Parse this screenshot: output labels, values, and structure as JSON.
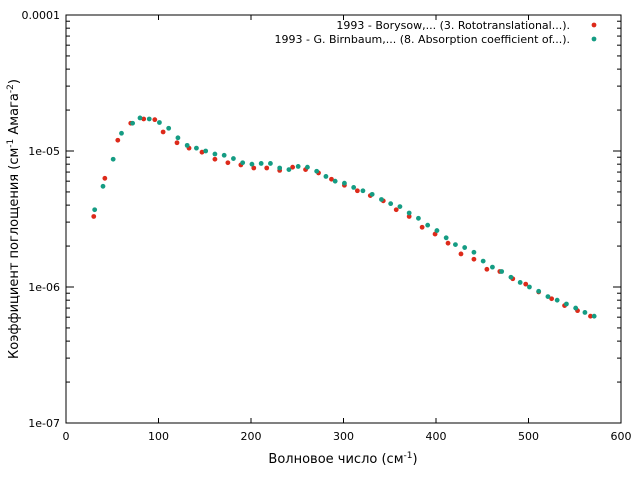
{
  "chart_data": {
    "type": "scatter",
    "xlabel": "Волновое число (см",
    "xlabel_sup": "-1",
    "xlabel_close": ")",
    "ylabel": "Коэффициент поглощения (см",
    "ylabel_sup1": "-1",
    "ylabel_mid": " Амага",
    "ylabel_sup2": "-2",
    "ylabel_close": ")",
    "xlim": [
      0,
      600
    ],
    "ylim": [
      1e-07,
      0.0001
    ],
    "yscale": "log",
    "x_ticks": [
      "0",
      "100",
      "200",
      "300",
      "400",
      "500",
      "600"
    ],
    "y_ticks": [
      "1e-07",
      "1e-06",
      "1e-05",
      "0.0001"
    ],
    "legend_position": "top-right",
    "series": [
      {
        "name": "1993 - Borysow,... (3. Rototranslational...).",
        "color": "#dd2a1a",
        "x": [
          30,
          42,
          56,
          70,
          84,
          96,
          105,
          120,
          133,
          147,
          161,
          175,
          189,
          203,
          217,
          231,
          245,
          259,
          273,
          287,
          301,
          315,
          329,
          343,
          357,
          371,
          385,
          399,
          413,
          427,
          441,
          455,
          469,
          483,
          497,
          511,
          525,
          539,
          553,
          567
        ],
        "y": [
          3.3e-06,
          6.3e-06,
          1.2e-05,
          1.6e-05,
          1.72e-05,
          1.7e-05,
          1.38e-05,
          1.15e-05,
          1.05e-05,
          9.8e-06,
          8.7e-06,
          8.2e-06,
          7.9e-06,
          7.5e-06,
          7.5e-06,
          7.2e-06,
          7.6e-06,
          7.3e-06,
          6.9e-06,
          6.2e-06,
          5.6e-06,
          5.1e-06,
          4.7e-06,
          4.3e-06,
          3.7e-06,
          3.3e-06,
          2.75e-06,
          2.45e-06,
          2.1e-06,
          1.75e-06,
          1.6e-06,
          1.35e-06,
          1.3e-06,
          1.15e-06,
          1.05e-06,
          9.2e-07,
          8.2e-07,
          7.3e-07,
          6.7e-07,
          6.1e-07
        ]
      },
      {
        "name": "1993 - G. Birnbaum,... (8. Absorption coefficient of...).",
        "color": "#159c83",
        "x": [
          31,
          40,
          51,
          60,
          72,
          80,
          90,
          101,
          111,
          121,
          131,
          141,
          151,
          161,
          171,
          181,
          191,
          201,
          211,
          221,
          231,
          241,
          251,
          261,
          271,
          281,
          291,
          301,
          311,
          321,
          331,
          341,
          351,
          361,
          371,
          381,
          391,
          401,
          411,
          421,
          431,
          441,
          451,
          461,
          471,
          481,
          491,
          501,
          511,
          521,
          531,
          541,
          551,
          561,
          571
        ],
        "y": [
          3.7e-06,
          5.5e-06,
          8.7e-06,
          1.35e-05,
          1.6e-05,
          1.75e-05,
          1.72e-05,
          1.62e-05,
          1.47e-05,
          1.25e-05,
          1.1e-05,
          1.05e-05,
          1e-05,
          9.5e-06,
          9.3e-06,
          8.8e-06,
          8.2e-06,
          8e-06,
          8.1e-06,
          8.1e-06,
          7.5e-06,
          7.3e-06,
          7.7e-06,
          7.6e-06,
          7.1e-06,
          6.5e-06,
          6e-06,
          5.8e-06,
          5.4e-06,
          5.1e-06,
          4.8e-06,
          4.4e-06,
          4.1e-06,
          3.9e-06,
          3.5e-06,
          3.2e-06,
          2.85e-06,
          2.6e-06,
          2.3e-06,
          2.05e-06,
          1.95e-06,
          1.8e-06,
          1.55e-06,
          1.4e-06,
          1.3e-06,
          1.18e-06,
          1.08e-06,
          1e-06,
          9.3e-07,
          8.5e-07,
          8e-07,
          7.5e-07,
          7e-07,
          6.5e-07,
          6.1e-07
        ]
      }
    ]
  }
}
